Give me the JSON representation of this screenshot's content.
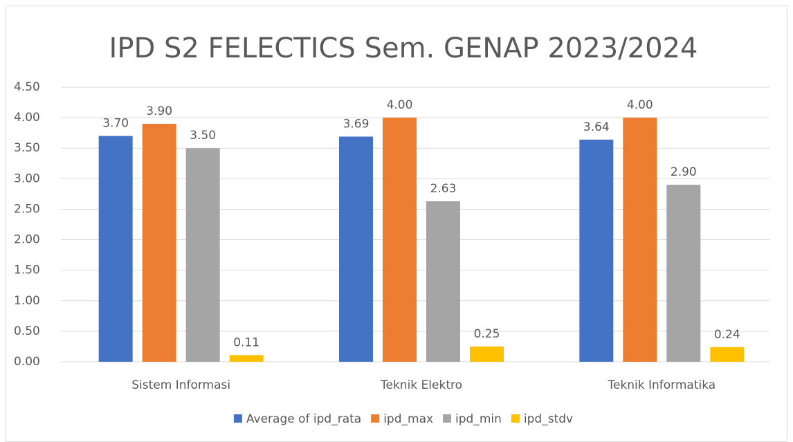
{
  "chart_data": {
    "type": "bar",
    "title": "IPD S2 FELECTICS Sem. GENAP 2023/2024",
    "categories": [
      "Sistem Informasi",
      "Teknik Elektro",
      "Teknik Informatika"
    ],
    "series": [
      {
        "name": "Average of ipd_rata",
        "color": "#4472c4",
        "values": [
          3.7,
          3.69,
          3.64
        ],
        "value_labels": [
          "3.70",
          "3.69",
          "3.64"
        ]
      },
      {
        "name": "ipd_max",
        "color": "#ed7d31",
        "values": [
          3.9,
          4.0,
          4.0
        ],
        "value_labels": [
          "3.90",
          "4.00",
          "4.00"
        ]
      },
      {
        "name": "ipd_min",
        "color": "#a5a5a5",
        "values": [
          3.5,
          2.63,
          2.9
        ],
        "value_labels": [
          "3.50",
          "2.63",
          "2.90"
        ]
      },
      {
        "name": "ipd_stdv",
        "color": "#ffc000",
        "values": [
          0.11,
          0.25,
          0.24
        ],
        "value_labels": [
          "0.11",
          "0.25",
          "0.24"
        ]
      }
    ],
    "ylim": [
      0,
      4.5
    ],
    "yticks": [
      {
        "value": 0,
        "label": "0.00"
      },
      {
        "value": 0.5,
        "label": "0.50"
      },
      {
        "value": 1,
        "label": "1.00"
      },
      {
        "value": 1.5,
        "label": "1.50"
      },
      {
        "value": 2,
        "label": "2.00"
      },
      {
        "value": 2.5,
        "label": "2.50"
      },
      {
        "value": 3,
        "label": "3.00"
      },
      {
        "value": 3.5,
        "label": "3.50"
      },
      {
        "value": 4,
        "label": "4.00"
      },
      {
        "value": 4.5,
        "label": "4.50"
      }
    ],
    "grid": true,
    "legend": "bottom"
  }
}
